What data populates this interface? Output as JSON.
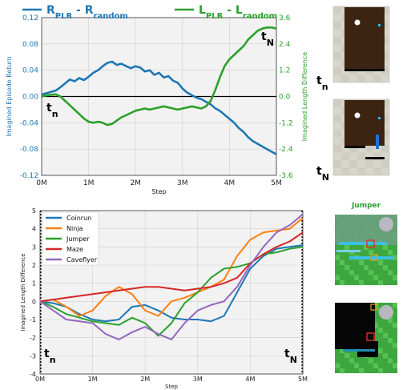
{
  "chart_data": [
    {
      "type": "line",
      "xlabel": "Step",
      "ylabel": "Imagined Episode Return",
      "ylabel_right": "Imagined Length Difference",
      "x_ticks": [
        "0M",
        "1M",
        "2M",
        "3M",
        "4M",
        "5M"
      ],
      "y_ticks_left": [
        "-0.12",
        "-0.08",
        "-0.04",
        "0.00",
        "0.04",
        "0.08",
        "0.12"
      ],
      "y_ticks_right": [
        "-3.6",
        "-2.4",
        "-1.2",
        "0.0",
        "1.2",
        "2.4",
        "3.6"
      ],
      "xlim": [
        0,
        5
      ],
      "ylim": [
        -0.12,
        0.12
      ],
      "ylim_right": [
        -3.6,
        3.6
      ],
      "legend_position": "top",
      "grid": true,
      "markers": {
        "start": "t",
        "start_sub": "n",
        "end": "t",
        "end_sub": "N"
      },
      "series": [
        {
          "name": "R",
          "name_sub1": "PLR",
          "name_mid": " - R",
          "name_sub2": "random",
          "axis": "left",
          "color": "#1f77b4",
          "x": [
            0,
            0.1,
            0.2,
            0.3,
            0.4,
            0.5,
            0.6,
            0.7,
            0.8,
            0.9,
            1.0,
            1.1,
            1.2,
            1.3,
            1.4,
            1.5,
            1.6,
            1.7,
            1.8,
            1.9,
            2.0,
            2.1,
            2.2,
            2.3,
            2.4,
            2.5,
            2.6,
            2.7,
            2.8,
            2.9,
            3.0,
            3.1,
            3.2,
            3.3,
            3.4,
            3.5,
            3.6,
            3.7,
            3.8,
            3.9,
            4.0,
            4.1,
            4.2,
            4.3,
            4.4,
            4.5,
            4.6,
            4.7,
            4.8,
            4.9,
            5.0
          ],
          "y": [
            0.003,
            0.005,
            0.007,
            0.009,
            0.014,
            0.02,
            0.026,
            0.023,
            0.028,
            0.025,
            0.03,
            0.036,
            0.04,
            0.046,
            0.051,
            0.053,
            0.048,
            0.05,
            0.046,
            0.043,
            0.046,
            0.044,
            0.038,
            0.04,
            0.033,
            0.036,
            0.029,
            0.031,
            0.024,
            0.021,
            0.012,
            0.006,
            0.002,
            -0.002,
            -0.004,
            -0.008,
            -0.012,
            -0.018,
            -0.022,
            -0.028,
            -0.034,
            -0.04,
            -0.048,
            -0.054,
            -0.062,
            -0.068,
            -0.072,
            -0.076,
            -0.08,
            -0.084,
            -0.088
          ]
        },
        {
          "name": "L",
          "name_sub1": "PLR",
          "name_mid": " - L",
          "name_sub2": "random",
          "axis": "right",
          "color": "#2ca02c",
          "x": [
            0,
            0.1,
            0.2,
            0.3,
            0.4,
            0.5,
            0.6,
            0.7,
            0.8,
            0.9,
            1.0,
            1.1,
            1.2,
            1.3,
            1.4,
            1.5,
            1.6,
            1.7,
            1.8,
            1.9,
            2.0,
            2.1,
            2.2,
            2.3,
            2.4,
            2.5,
            2.6,
            2.7,
            2.8,
            2.9,
            3.0,
            3.1,
            3.2,
            3.3,
            3.4,
            3.5,
            3.6,
            3.7,
            3.8,
            3.9,
            4.0,
            4.1,
            4.2,
            4.3,
            4.4,
            4.5,
            4.6,
            4.7,
            4.8,
            4.9,
            5.0
          ],
          "y": [
            0.0,
            0.05,
            0.08,
            0.1,
            0.0,
            -0.2,
            -0.4,
            -0.6,
            -0.8,
            -1.0,
            -1.15,
            -1.2,
            -1.15,
            -1.2,
            -1.3,
            -1.25,
            -1.1,
            -0.95,
            -0.85,
            -0.75,
            -0.65,
            -0.6,
            -0.55,
            -0.6,
            -0.55,
            -0.5,
            -0.45,
            -0.5,
            -0.55,
            -0.6,
            -0.55,
            -0.5,
            -0.45,
            -0.5,
            -0.55,
            -0.45,
            -0.2,
            0.3,
            0.9,
            1.4,
            1.7,
            1.9,
            2.1,
            2.3,
            2.6,
            2.8,
            3.0,
            3.1,
            3.15,
            3.15,
            3.1
          ]
        }
      ]
    },
    {
      "type": "line",
      "xlabel": "Step",
      "ylabel": "Imagined Length Difference",
      "x_ticks": [
        "0M",
        "1M",
        "2M",
        "3M",
        "4M",
        "5M"
      ],
      "y_ticks": [
        "-4",
        "-3",
        "-2",
        "-1",
        "0",
        "1",
        "2",
        "3",
        "4",
        "5"
      ],
      "xlim": [
        0,
        5
      ],
      "ylim": [
        -4,
        5
      ],
      "legend_position": "top-left",
      "grid": true,
      "markers": {
        "start": "t",
        "start_sub": "n",
        "end": "t",
        "end_sub": "N"
      },
      "series": [
        {
          "name": "Coinrun",
          "color": "#1f77b4",
          "x": [
            0,
            0.25,
            0.5,
            0.75,
            1.0,
            1.25,
            1.5,
            1.75,
            2.0,
            2.25,
            2.5,
            2.75,
            3.0,
            3.25,
            3.5,
            3.75,
            4.0,
            4.25,
            4.5,
            4.75,
            5.0
          ],
          "y": [
            0.0,
            -0.1,
            -0.3,
            -0.7,
            -1.0,
            -1.1,
            -1.0,
            -0.3,
            -0.2,
            -0.5,
            -0.9,
            -1.0,
            -1.0,
            -1.1,
            -0.8,
            0.5,
            1.8,
            2.5,
            2.9,
            3.0,
            3.1
          ]
        },
        {
          "name": "Ninja",
          "color": "#ff7f0e",
          "x": [
            0,
            0.25,
            0.5,
            0.75,
            1.0,
            1.25,
            1.5,
            1.75,
            2.0,
            2.25,
            2.5,
            2.75,
            3.0,
            3.25,
            3.5,
            3.75,
            4.0,
            4.25,
            4.5,
            4.75,
            5.0
          ],
          "y": [
            0.0,
            0.1,
            -0.3,
            -0.8,
            -0.5,
            0.3,
            0.8,
            0.4,
            -0.5,
            -0.8,
            0.0,
            0.2,
            0.5,
            0.8,
            1.2,
            2.5,
            3.4,
            3.8,
            3.9,
            4.0,
            4.6
          ]
        },
        {
          "name": "Jumper",
          "color": "#2ca02c",
          "x": [
            0,
            0.25,
            0.5,
            0.75,
            1.0,
            1.25,
            1.5,
            1.75,
            2.0,
            2.25,
            2.5,
            2.75,
            3.0,
            3.25,
            3.5,
            3.75,
            4.0,
            4.25,
            4.5,
            4.75,
            5.0
          ],
          "y": [
            0.0,
            -0.3,
            -0.7,
            -0.9,
            -1.1,
            -1.2,
            -1.3,
            -0.9,
            -1.2,
            -1.9,
            -1.2,
            -0.1,
            0.5,
            1.3,
            1.8,
            1.9,
            2.1,
            2.6,
            2.7,
            2.9,
            3.0
          ]
        },
        {
          "name": "Maze",
          "color": "#d62728",
          "x": [
            0,
            0.25,
            0.5,
            0.75,
            1.0,
            1.25,
            1.5,
            1.75,
            2.0,
            2.25,
            2.5,
            2.75,
            3.0,
            3.25,
            3.5,
            3.75,
            4.0,
            4.25,
            4.5,
            4.75,
            5.0
          ],
          "y": [
            0.0,
            0.1,
            0.2,
            0.3,
            0.4,
            0.5,
            0.6,
            0.7,
            0.8,
            0.8,
            0.7,
            0.6,
            0.7,
            0.8,
            1.0,
            1.3,
            2.1,
            2.6,
            3.0,
            3.3,
            3.8
          ]
        },
        {
          "name": "Caveflyer",
          "color": "#9467bd",
          "x": [
            0,
            0.25,
            0.5,
            0.75,
            1.0,
            1.25,
            1.5,
            1.75,
            2.0,
            2.25,
            2.5,
            2.75,
            3.0,
            3.25,
            3.5,
            3.75,
            4.0,
            4.25,
            4.5,
            4.75,
            5.0
          ],
          "y": [
            0.0,
            -0.5,
            -1.0,
            -1.1,
            -1.2,
            -1.8,
            -2.1,
            -1.7,
            -1.4,
            -1.8,
            -2.1,
            -1.2,
            -0.5,
            -0.2,
            0.0,
            0.8,
            2.0,
            3.0,
            3.8,
            4.2,
            4.8
          ]
        }
      ]
    }
  ],
  "thumbnails": {
    "top": [
      {
        "label": "t",
        "sub": "n"
      },
      {
        "label": "t",
        "sub": "N"
      }
    ],
    "bottom_title": "Jumper"
  }
}
